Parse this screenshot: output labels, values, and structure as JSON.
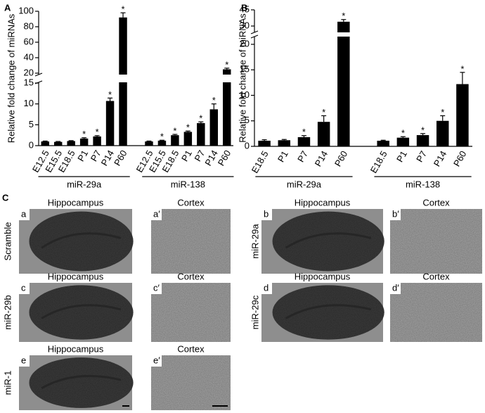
{
  "chart_data": [
    {
      "type": "bar",
      "panel_label": "A",
      "y_label": "Relative fold change of miRNAs",
      "ylim": [
        0,
        100
      ],
      "ybreak": [
        15,
        20
      ],
      "yticks": [
        0,
        5,
        10,
        15,
        20,
        40,
        60,
        80,
        100
      ],
      "color": "#000000",
      "marker": "*",
      "series": [
        {
          "name": "miR-29a",
          "categories": [
            "E12.5",
            "E15.5",
            "E18.5",
            "P1",
            "P7",
            "P14",
            "P60"
          ],
          "values": [
            1,
            0.9,
            1.1,
            1.7,
            2.2,
            10.7,
            92
          ],
          "errors": [
            0.1,
            0.1,
            0.1,
            0.2,
            0.2,
            0.7,
            6
          ],
          "significant": [
            false,
            false,
            false,
            true,
            true,
            true,
            true
          ]
        },
        {
          "name": "miR-138",
          "categories": [
            "E12.5",
            "E15.5",
            "E18.5",
            "P1",
            "P7",
            "P14",
            "P60"
          ],
          "values": [
            1,
            1.2,
            2.5,
            3.3,
            5.4,
            8.7,
            25
          ],
          "errors": [
            0.1,
            0.1,
            0.2,
            0.2,
            0.3,
            1.3,
            1.5
          ],
          "significant": [
            false,
            true,
            true,
            true,
            true,
            true,
            true
          ]
        }
      ]
    },
    {
      "type": "bar",
      "panel_label": "B",
      "y_label": "Relative fold change of miRNAs",
      "ylim": [
        0,
        45
      ],
      "ybreak": [
        20,
        30
      ],
      "yticks": [
        0,
        5,
        10,
        15,
        20,
        30,
        45
      ],
      "color": "#000000",
      "marker": "*",
      "series": [
        {
          "name": "miR-29a",
          "categories": [
            "E18.5",
            "P1",
            "P7",
            "P14",
            "P60"
          ],
          "values": [
            1.1,
            1.2,
            1.8,
            4.8,
            34
          ],
          "errors": [
            0.2,
            0.15,
            0.3,
            1.2,
            2
          ],
          "significant": [
            false,
            false,
            true,
            true,
            true
          ]
        },
        {
          "name": "miR-138",
          "categories": [
            "E18.5",
            "P1",
            "P7",
            "P14",
            "P60"
          ],
          "values": [
            1.1,
            1.7,
            2.2,
            5.0,
            12.2
          ],
          "errors": [
            0.1,
            0.2,
            0.3,
            1.0,
            2.3
          ],
          "significant": [
            false,
            true,
            true,
            true,
            true
          ]
        }
      ]
    }
  ],
  "panel_c": {
    "label": "C",
    "panels": [
      {
        "row_label": "Scramble",
        "images": [
          {
            "letter": "a",
            "title": "Hippocampus"
          },
          {
            "letter": "a′",
            "title": "Cortex"
          }
        ]
      },
      {
        "row_label": "miR-29a",
        "images": [
          {
            "letter": "b",
            "title": "Hippocampus"
          },
          {
            "letter": "b′",
            "title": "Cortex"
          }
        ]
      },
      {
        "row_label": "miR-29b",
        "images": [
          {
            "letter": "c",
            "title": "Hippocampus"
          },
          {
            "letter": "c′",
            "title": "Cortex"
          }
        ]
      },
      {
        "row_label": "miR-29c",
        "images": [
          {
            "letter": "d",
            "title": "Hippocampus"
          },
          {
            "letter": "d′",
            "title": "Cortex"
          }
        ]
      },
      {
        "row_label": "miR-1",
        "images": [
          {
            "letter": "e",
            "title": "Hippocampus"
          },
          {
            "letter": "e′",
            "title": "Cortex"
          }
        ]
      }
    ]
  }
}
